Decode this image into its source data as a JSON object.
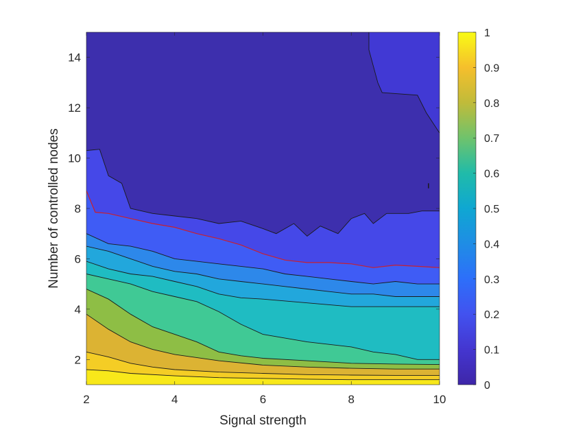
{
  "chart_data": {
    "type": "heatmap",
    "subtype": "filled-contour",
    "xlabel": "Signal strength",
    "ylabel": "Number of controlled nodes",
    "xlim": [
      2,
      10
    ],
    "ylim": [
      1,
      15
    ],
    "xticks": [
      2,
      4,
      6,
      8,
      10
    ],
    "yticks": [
      2,
      4,
      6,
      8,
      10,
      12,
      14
    ],
    "colorbar": {
      "colormap": "parula",
      "range": [
        0,
        1
      ],
      "ticks": [
        0,
        0.1,
        0.2,
        0.3,
        0.4,
        0.5,
        0.6,
        0.7,
        0.8,
        0.9,
        1
      ]
    },
    "levels": [
      0.05,
      0.1,
      0.15,
      0.2,
      0.25,
      0.3,
      0.4,
      0.5,
      0.6,
      0.7,
      0.8,
      0.9
    ],
    "level_colors": [
      "#3d2fad",
      "#4139d4",
      "#4548e8",
      "#3f5cf5",
      "#3a6ef8",
      "#2d88ea",
      "#22a7dc",
      "#1fbcc2",
      "#40c995",
      "#8ebe45",
      "#dcb333",
      "#f4cd25",
      "#f8e81a"
    ],
    "highlight_contour": {
      "level": 0.15,
      "color": "#c8202f"
    },
    "contour_lines": [
      {
        "level": 0.9,
        "points": [
          [
            2,
            1.6
          ],
          [
            2.5,
            1.55
          ],
          [
            3,
            1.45
          ],
          [
            4,
            1.35
          ],
          [
            5,
            1.28
          ],
          [
            6,
            1.25
          ],
          [
            7,
            1.22
          ],
          [
            8,
            1.2
          ],
          [
            9,
            1.2
          ],
          [
            10,
            1.2
          ]
        ]
      },
      {
        "level": 0.8,
        "points": [
          [
            2,
            2.3
          ],
          [
            2.5,
            2.1
          ],
          [
            3,
            1.85
          ],
          [
            3.5,
            1.7
          ],
          [
            4,
            1.6
          ],
          [
            5,
            1.5
          ],
          [
            6,
            1.45
          ],
          [
            7,
            1.4
          ],
          [
            8,
            1.38
          ],
          [
            9,
            1.37
          ],
          [
            10,
            1.37
          ]
        ]
      },
      {
        "level": 0.7,
        "points": [
          [
            2,
            3.8
          ],
          [
            2.5,
            3.2
          ],
          [
            3,
            2.7
          ],
          [
            3.5,
            2.4
          ],
          [
            4,
            2.2
          ],
          [
            5,
            1.95
          ],
          [
            6,
            1.78
          ],
          [
            7,
            1.7
          ],
          [
            8,
            1.65
          ],
          [
            9,
            1.62
          ],
          [
            10,
            1.62
          ]
        ]
      },
      {
        "level": 0.6,
        "points": [
          [
            2,
            4.8
          ],
          [
            2.5,
            4.4
          ],
          [
            3,
            3.8
          ],
          [
            3.5,
            3.3
          ],
          [
            4,
            3.0
          ],
          [
            4.5,
            2.7
          ],
          [
            5,
            2.3
          ],
          [
            5.5,
            2.15
          ],
          [
            6,
            2.05
          ],
          [
            7,
            1.95
          ],
          [
            8,
            1.85
          ],
          [
            9,
            1.82
          ],
          [
            10,
            1.8
          ]
        ]
      },
      {
        "level": 0.5,
        "points": [
          [
            2,
            5.4
          ],
          [
            2.5,
            5.2
          ],
          [
            3,
            5.0
          ],
          [
            3.5,
            4.7
          ],
          [
            4,
            4.5
          ],
          [
            4.5,
            4.3
          ],
          [
            5,
            3.9
          ],
          [
            5.5,
            3.4
          ],
          [
            6,
            3.0
          ],
          [
            7,
            2.7
          ],
          [
            8,
            2.5
          ],
          [
            8.5,
            2.3
          ],
          [
            9,
            2.2
          ],
          [
            9.5,
            2.0
          ],
          [
            10,
            2.0
          ]
        ]
      },
      {
        "level": 0.4,
        "points": [
          [
            2,
            5.9
          ],
          [
            2.5,
            5.6
          ],
          [
            3,
            5.4
          ],
          [
            3.5,
            5.3
          ],
          [
            4,
            5.1
          ],
          [
            4.5,
            4.9
          ],
          [
            5,
            4.6
          ],
          [
            5.5,
            4.45
          ],
          [
            6,
            4.4
          ],
          [
            7,
            4.25
          ],
          [
            8,
            4.1
          ],
          [
            9,
            4.1
          ],
          [
            10,
            4.1
          ]
        ]
      },
      {
        "level": 0.3,
        "points": [
          [
            2,
            6.5
          ],
          [
            2.5,
            6.3
          ],
          [
            3,
            6.0
          ],
          [
            3.5,
            5.7
          ],
          [
            4,
            5.5
          ],
          [
            4.5,
            5.4
          ],
          [
            5,
            5.2
          ],
          [
            5.5,
            5.1
          ],
          [
            6,
            5.0
          ],
          [
            6.5,
            4.9
          ],
          [
            7,
            4.8
          ],
          [
            7.5,
            4.7
          ],
          [
            8,
            4.6
          ],
          [
            8.5,
            4.6
          ],
          [
            9,
            4.5
          ],
          [
            9.5,
            4.5
          ],
          [
            10,
            4.5
          ]
        ]
      },
      {
        "level": 0.25,
        "points": [
          [
            2,
            7.0
          ],
          [
            2.5,
            6.6
          ],
          [
            3,
            6.5
          ],
          [
            3.5,
            6.3
          ],
          [
            4,
            6.0
          ],
          [
            4.5,
            5.9
          ],
          [
            5,
            5.8
          ],
          [
            5.5,
            5.7
          ],
          [
            6,
            5.6
          ],
          [
            6.5,
            5.4
          ],
          [
            7,
            5.3
          ],
          [
            7.5,
            5.2
          ],
          [
            8,
            5.1
          ],
          [
            8.5,
            5.0
          ],
          [
            9,
            5.1
          ],
          [
            9.5,
            5.0
          ],
          [
            10,
            5.0
          ]
        ]
      },
      {
        "level": 0.15,
        "points": [
          [
            2,
            8.7
          ],
          [
            2.2,
            7.85
          ],
          [
            2.5,
            7.8
          ],
          [
            3,
            7.6
          ],
          [
            3.5,
            7.4
          ],
          [
            4,
            7.25
          ],
          [
            4.5,
            7.0
          ],
          [
            5,
            6.8
          ],
          [
            5.5,
            6.55
          ],
          [
            6,
            6.2
          ],
          [
            6.5,
            5.95
          ],
          [
            7,
            5.85
          ],
          [
            7.5,
            5.85
          ],
          [
            8,
            5.8
          ],
          [
            8.5,
            5.65
          ],
          [
            9,
            5.75
          ],
          [
            9.5,
            5.7
          ],
          [
            10,
            5.65
          ]
        ]
      },
      {
        "level": 0.1,
        "points": [
          [
            2,
            10.3
          ],
          [
            2.3,
            10.35
          ],
          [
            2.5,
            9.3
          ],
          [
            2.8,
            9.0
          ],
          [
            3,
            8.0
          ],
          [
            3.5,
            7.8
          ],
          [
            4,
            7.7
          ],
          [
            4.5,
            7.6
          ],
          [
            5,
            7.4
          ],
          [
            5.5,
            7.5
          ],
          [
            6,
            7.2
          ],
          [
            6.3,
            7.0
          ],
          [
            6.7,
            7.4
          ],
          [
            7,
            6.9
          ],
          [
            7.3,
            7.3
          ],
          [
            7.7,
            7.0
          ],
          [
            8,
            7.6
          ],
          [
            8.3,
            7.8
          ],
          [
            8.5,
            7.4
          ],
          [
            8.8,
            7.8
          ],
          [
            9.3,
            7.8
          ],
          [
            9.6,
            7.9
          ],
          [
            10,
            7.9
          ]
        ]
      },
      {
        "level": 0.05,
        "points": [
          [
            8.4,
            15
          ],
          [
            8.4,
            14.3
          ],
          [
            8.6,
            13.0
          ],
          [
            8.7,
            12.6
          ],
          [
            9.5,
            12.5
          ],
          [
            9.7,
            11.8
          ],
          [
            10,
            11.0
          ]
        ]
      }
    ]
  }
}
